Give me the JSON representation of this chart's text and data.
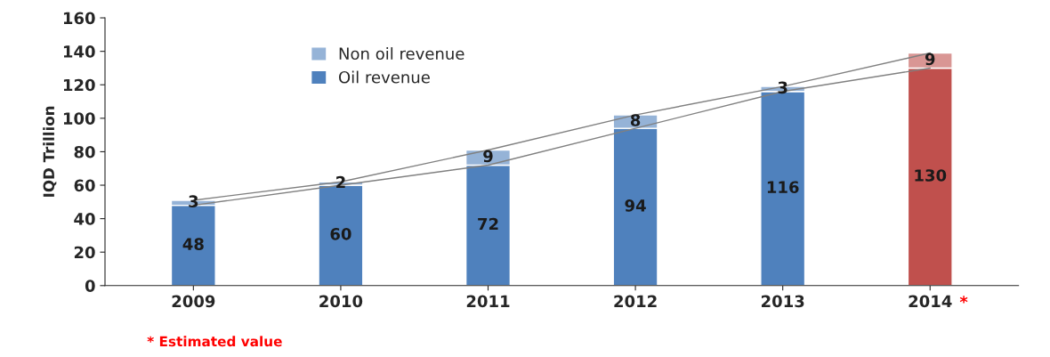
{
  "chart_data": {
    "type": "bar",
    "stacked": true,
    "ylabel": "IQD Trillion",
    "categories": [
      "2009",
      "2010",
      "2011",
      "2012",
      "2013",
      "2014"
    ],
    "series": [
      {
        "name": "Oil revenue",
        "color": "#4f81bd",
        "colors": [
          "#4f81bd",
          "#4f81bd",
          "#4f81bd",
          "#4f81bd",
          "#4f81bd",
          "#c0504d"
        ],
        "values": [
          48,
          60,
          72,
          94,
          116,
          130
        ],
        "value_labels": [
          "48",
          "60",
          "72",
          "94",
          "116",
          "130"
        ]
      },
      {
        "name": "Non oil revenue",
        "color": "#95b3d7",
        "colors": [
          "#95b3d7",
          "#95b3d7",
          "#95b3d7",
          "#95b3d7",
          "#95b3d7",
          "#d99694"
        ],
        "values": [
          3,
          2,
          9,
          8,
          3,
          9
        ],
        "value_labels": [
          "3",
          "2",
          "9",
          "8",
          "3",
          "9"
        ]
      },
      {
        "type": "line",
        "color": "#808080",
        "values": [
          48,
          60,
          72,
          94,
          116,
          130
        ]
      },
      {
        "type": "line",
        "color": "#808080",
        "values": [
          51,
          62,
          81,
          102,
          119,
          139
        ]
      }
    ],
    "ylim": [
      0,
      160
    ],
    "yticks": [
      0,
      20,
      40,
      60,
      80,
      100,
      120,
      140,
      160
    ],
    "legend": "top left",
    "grid": false,
    "annotations": [
      "*",
      "* Estimated value"
    ]
  }
}
